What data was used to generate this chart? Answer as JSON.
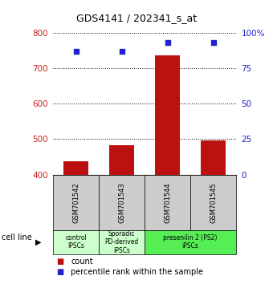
{
  "title": "GDS4141 / 202341_s_at",
  "samples": [
    "GSM701542",
    "GSM701543",
    "GSM701544",
    "GSM701545"
  ],
  "counts": [
    437,
    483,
    737,
    497
  ],
  "percentile_ranks": [
    87,
    87,
    93,
    93
  ],
  "ylim_left": [
    400,
    800
  ],
  "ylim_right": [
    0,
    100
  ],
  "yticks_left": [
    400,
    500,
    600,
    700,
    800
  ],
  "yticks_right": [
    0,
    25,
    50,
    75,
    100
  ],
  "ytick_right_labels": [
    "0",
    "25",
    "50",
    "75",
    "100%"
  ],
  "bar_color": "#bb1111",
  "dot_color": "#2222cc",
  "bar_width": 0.55,
  "group_colors": [
    "#ccffcc",
    "#ccffcc",
    "#55ee55"
  ],
  "group_labels": [
    "control\nIPSCs",
    "Sporadic\nPD-derived\niPSCs",
    "presenilin 2 (PS2)\niPSCs"
  ],
  "group_indices": [
    [
      0
    ],
    [
      1
    ],
    [
      2,
      3
    ]
  ],
  "sample_box_color": "#cccccc",
  "cell_line_label": "cell line",
  "legend_count_label": "count",
  "legend_pct_label": "percentile rank within the sample",
  "left_tick_color": "#cc2222",
  "right_tick_color": "#2222cc",
  "title_fontsize": 9,
  "tick_fontsize": 7.5,
  "sample_fontsize": 6,
  "group_fontsize": 5.5,
  "legend_fontsize": 7
}
